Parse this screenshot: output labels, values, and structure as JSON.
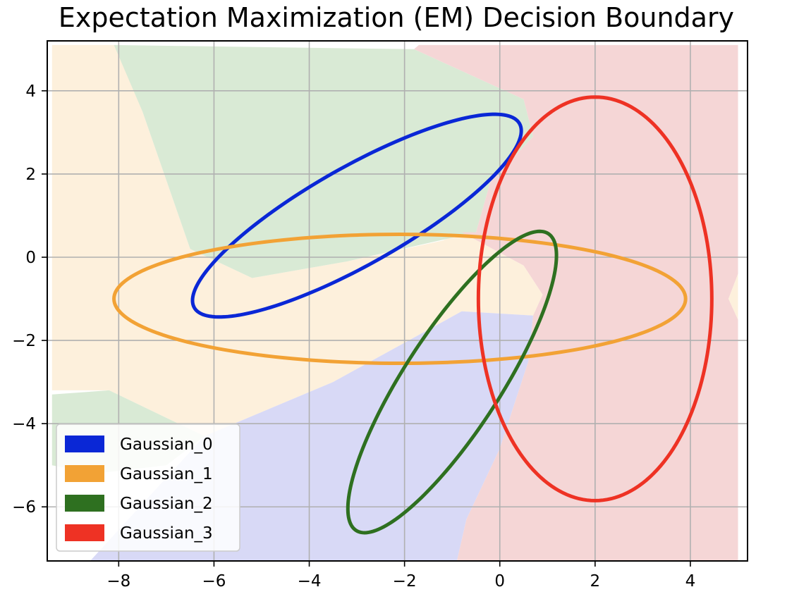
{
  "chart_data": {
    "type": "scatter",
    "title": "Expectation Maximization (EM) Decision Boundary",
    "xlabel": "",
    "ylabel": "",
    "xlim": [
      -9.5,
      5.2
    ],
    "ylim": [
      -7.3,
      5.2
    ],
    "grid": true,
    "x_ticks": [
      -8,
      -6,
      -4,
      -2,
      0,
      2,
      4
    ],
    "x_tick_labels": [
      "−8",
      "−6",
      "−4",
      "−2",
      "0",
      "2",
      "4"
    ],
    "y_ticks": [
      4,
      2,
      0,
      -2,
      -4,
      -6
    ],
    "y_tick_labels": [
      "4",
      "2",
      "0",
      "−2",
      "−4",
      "−6"
    ],
    "legend": {
      "placement": "lower-left",
      "entries": [
        "Gaussian_0",
        "Gaussian_1",
        "Gaussian_2",
        "Gaussian_3"
      ]
    },
    "series": [
      {
        "name": "Gaussian_0",
        "color": "#0a27d6",
        "region_color": "#d9ead5",
        "center": [
          -3.0,
          1.0
        ],
        "semi_axes": [
          4.07,
          1.13
        ],
        "angle_deg": 33.5
      },
      {
        "name": "Gaussian_1",
        "color": "#f2a235",
        "region_color": "#fdf0dc",
        "center": [
          -2.1,
          -1.0
        ],
        "semi_axes": [
          6.0,
          1.55
        ],
        "angle_deg": 0
      },
      {
        "name": "Gaussian_2",
        "color": "#2e7020",
        "region_color": "#d8d9f6",
        "center": [
          -1.0,
          -3.0
        ],
        "semi_axes": [
          4.1,
          1.05
        ],
        "angle_deg": 61
      },
      {
        "name": "Gaussian_3",
        "color": "#ee3224",
        "region_color": "#f5d6d6",
        "center": [
          2.0,
          -1.0
        ],
        "semi_axes": [
          2.45,
          4.85
        ],
        "angle_deg": 0
      }
    ],
    "decision_regions": [
      {
        "fill": "#fdf0dc",
        "points": [
          [
            -9.4,
            5.1
          ],
          [
            -8.0,
            5.1
          ],
          [
            -7.5,
            3.5
          ],
          [
            -6.5,
            0.2
          ],
          [
            -5.2,
            -0.5
          ],
          [
            -3.2,
            -0.1
          ],
          [
            -1.2,
            0.4
          ],
          [
            -0.8,
            0.6
          ],
          [
            0.5,
            -0.2
          ],
          [
            0.9,
            -0.9
          ],
          [
            0.7,
            -1.4
          ],
          [
            -0.8,
            -1.3
          ],
          [
            -3.5,
            -3.0
          ],
          [
            -6.2,
            -4.3
          ],
          [
            -8.2,
            -3.2
          ],
          [
            -9.4,
            -3.2
          ]
        ]
      },
      {
        "fill": "#d9ead5",
        "points": [
          [
            -8.1,
            5.1
          ],
          [
            -1.8,
            5.0
          ],
          [
            0.5,
            3.8
          ],
          [
            0.7,
            2.9
          ],
          [
            -0.2,
            1.8
          ],
          [
            -0.5,
            0.6
          ],
          [
            -3.2,
            -0.1
          ],
          [
            -5.2,
            -0.5
          ],
          [
            -6.5,
            0.2
          ],
          [
            -7.5,
            3.5
          ]
        ]
      },
      {
        "fill": "#d9ead5",
        "points": [
          [
            -9.4,
            -3.3
          ],
          [
            -8.2,
            -3.2
          ],
          [
            -6.2,
            -4.3
          ],
          [
            -7.0,
            -5.0
          ],
          [
            -8.5,
            -5.2
          ],
          [
            -9.4,
            -5.0
          ]
        ]
      },
      {
        "fill": "#d8d9f6",
        "points": [
          [
            -8.6,
            -7.3
          ],
          [
            -6.2,
            -4.3
          ],
          [
            -3.5,
            -3.0
          ],
          [
            -0.8,
            -1.3
          ],
          [
            0.7,
            -1.4
          ],
          [
            0.6,
            -2.5
          ],
          [
            0.0,
            -4.6
          ],
          [
            -0.7,
            -6.3
          ],
          [
            -0.9,
            -7.3
          ]
        ]
      },
      {
        "fill": "#f5d6d6",
        "points": [
          [
            -0.9,
            -7.3
          ],
          [
            -0.7,
            -6.3
          ],
          [
            0.0,
            -4.6
          ],
          [
            0.6,
            -2.5
          ],
          [
            0.7,
            -1.4
          ],
          [
            0.9,
            -0.9
          ],
          [
            0.5,
            -0.2
          ],
          [
            -0.8,
            0.6
          ],
          [
            -0.5,
            0.6
          ],
          [
            -0.2,
            1.8
          ],
          [
            0.7,
            2.9
          ],
          [
            0.5,
            3.8
          ],
          [
            -1.8,
            5.0
          ],
          [
            -1.7,
            5.1
          ],
          [
            5.0,
            5.1
          ],
          [
            5.0,
            -0.4
          ],
          [
            4.8,
            -1.0
          ],
          [
            5.0,
            -1.5
          ],
          [
            5.0,
            -7.3
          ]
        ]
      },
      {
        "fill": "#fdf0dc",
        "points": [
          [
            5.0,
            -0.4
          ],
          [
            4.8,
            -1.0
          ],
          [
            5.0,
            -1.5
          ]
        ]
      }
    ]
  }
}
